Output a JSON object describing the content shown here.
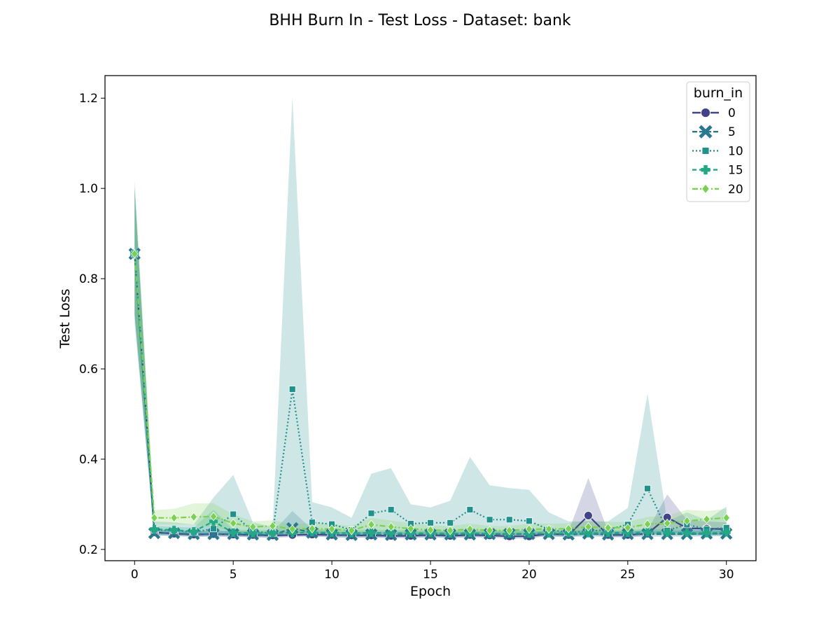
{
  "chart_data": {
    "type": "line",
    "title": "BHH Burn In - Test Loss - Dataset: bank",
    "xlabel": "Epoch",
    "ylabel": "Test Loss",
    "xlim": [
      -1.5,
      31.5
    ],
    "ylim": [
      0.175,
      1.25
    ],
    "x_ticks": [
      0,
      5,
      10,
      15,
      20,
      25,
      30
    ],
    "y_ticks": [
      0.2,
      0.4,
      0.6,
      0.8,
      1.0,
      1.2
    ],
    "x_tick_labels": [
      "0",
      "5",
      "10",
      "15",
      "20",
      "25",
      "30"
    ],
    "y_tick_labels": [
      "0.2",
      "0.4",
      "0.6",
      "0.8",
      "1.0",
      "1.2"
    ],
    "legend": {
      "title": "burn_in",
      "placement": "top-right"
    },
    "grid": false,
    "x": [
      0,
      1,
      2,
      3,
      4,
      5,
      6,
      7,
      8,
      9,
      10,
      11,
      12,
      13,
      14,
      15,
      16,
      17,
      18,
      19,
      20,
      21,
      22,
      23,
      24,
      25,
      26,
      27,
      28,
      29,
      30
    ],
    "series": [
      {
        "name": "0",
        "color": "#414487",
        "dash": "solid",
        "marker": "circle",
        "values": [
          0.855,
          0.238,
          0.235,
          0.233,
          0.234,
          0.233,
          0.232,
          0.231,
          0.232,
          0.233,
          0.232,
          0.231,
          0.231,
          0.23,
          0.23,
          0.232,
          0.23,
          0.232,
          0.231,
          0.229,
          0.229,
          0.235,
          0.232,
          0.275,
          0.232,
          0.232,
          0.235,
          0.271,
          0.247,
          0.246,
          0.245
        ],
        "lower": [
          0.72,
          0.232,
          0.23,
          0.228,
          0.229,
          0.228,
          0.227,
          0.226,
          0.227,
          0.228,
          0.227,
          0.226,
          0.226,
          0.225,
          0.225,
          0.227,
          0.225,
          0.227,
          0.226,
          0.224,
          0.224,
          0.23,
          0.227,
          0.235,
          0.227,
          0.227,
          0.23,
          0.24,
          0.233,
          0.232,
          0.232
        ],
        "upper": [
          1.0,
          0.245,
          0.242,
          0.24,
          0.241,
          0.24,
          0.239,
          0.238,
          0.239,
          0.24,
          0.239,
          0.238,
          0.238,
          0.237,
          0.237,
          0.239,
          0.237,
          0.239,
          0.238,
          0.236,
          0.236,
          0.242,
          0.24,
          0.358,
          0.24,
          0.24,
          0.242,
          0.322,
          0.265,
          0.262,
          0.26
        ]
      },
      {
        "name": "5",
        "color": "#2a788e",
        "dash": "longdash",
        "marker": "x",
        "values": [
          0.855,
          0.236,
          0.236,
          0.234,
          0.234,
          0.234,
          0.233,
          0.232,
          0.247,
          0.237,
          0.233,
          0.232,
          0.233,
          0.232,
          0.233,
          0.233,
          0.233,
          0.233,
          0.234,
          0.234,
          0.234,
          0.234,
          0.233,
          0.235,
          0.233,
          0.234,
          0.234,
          0.234,
          0.234,
          0.235,
          0.235
        ],
        "lower": [
          0.72,
          0.23,
          0.23,
          0.228,
          0.228,
          0.228,
          0.227,
          0.226,
          0.23,
          0.23,
          0.227,
          0.226,
          0.227,
          0.226,
          0.227,
          0.227,
          0.227,
          0.227,
          0.228,
          0.228,
          0.228,
          0.228,
          0.227,
          0.229,
          0.227,
          0.228,
          0.228,
          0.228,
          0.228,
          0.229,
          0.229
        ],
        "upper": [
          1.0,
          0.243,
          0.243,
          0.241,
          0.241,
          0.241,
          0.24,
          0.239,
          0.285,
          0.245,
          0.24,
          0.239,
          0.24,
          0.239,
          0.24,
          0.24,
          0.24,
          0.24,
          0.241,
          0.241,
          0.241,
          0.241,
          0.24,
          0.242,
          0.24,
          0.241,
          0.241,
          0.241,
          0.241,
          0.242,
          0.242
        ]
      },
      {
        "name": "10",
        "color": "#21918c",
        "dash": "dotted",
        "marker": "square",
        "values": [
          0.855,
          0.243,
          0.242,
          0.238,
          0.246,
          0.278,
          0.24,
          0.236,
          0.555,
          0.26,
          0.256,
          0.243,
          0.28,
          0.288,
          0.257,
          0.259,
          0.259,
          0.288,
          0.266,
          0.266,
          0.263,
          0.244,
          0.238,
          0.24,
          0.244,
          0.255,
          0.335,
          0.242,
          0.255,
          0.245,
          0.248
        ],
        "lower": [
          0.7,
          0.232,
          0.232,
          0.228,
          0.232,
          0.232,
          0.23,
          0.228,
          0.24,
          0.235,
          0.236,
          0.232,
          0.235,
          0.235,
          0.232,
          0.232,
          0.232,
          0.235,
          0.232,
          0.232,
          0.232,
          0.232,
          0.23,
          0.23,
          0.232,
          0.232,
          0.235,
          0.232,
          0.232,
          0.232,
          0.232
        ],
        "upper": [
          1.02,
          0.262,
          0.26,
          0.255,
          0.315,
          0.365,
          0.26,
          0.25,
          1.203,
          0.305,
          0.293,
          0.27,
          0.368,
          0.38,
          0.3,
          0.293,
          0.308,
          0.405,
          0.342,
          0.336,
          0.332,
          0.282,
          0.262,
          0.262,
          0.262,
          0.292,
          0.545,
          0.262,
          0.282,
          0.265,
          0.295
        ]
      },
      {
        "name": "15",
        "color": "#22a884",
        "dash": "dashed",
        "marker": "plus",
        "values": [
          0.855,
          0.245,
          0.243,
          0.24,
          0.262,
          0.237,
          0.236,
          0.236,
          0.236,
          0.238,
          0.237,
          0.236,
          0.237,
          0.236,
          0.236,
          0.236,
          0.235,
          0.236,
          0.235,
          0.235,
          0.235,
          0.236,
          0.236,
          0.236,
          0.237,
          0.237,
          0.238,
          0.237,
          0.237,
          0.236,
          0.238
        ],
        "lower": [
          0.72,
          0.238,
          0.236,
          0.234,
          0.236,
          0.231,
          0.23,
          0.23,
          0.23,
          0.232,
          0.231,
          0.23,
          0.231,
          0.23,
          0.23,
          0.23,
          0.229,
          0.23,
          0.229,
          0.229,
          0.229,
          0.23,
          0.23,
          0.23,
          0.231,
          0.231,
          0.232,
          0.231,
          0.231,
          0.23,
          0.232
        ],
        "upper": [
          1.0,
          0.252,
          0.25,
          0.248,
          0.288,
          0.244,
          0.243,
          0.243,
          0.243,
          0.245,
          0.244,
          0.243,
          0.244,
          0.243,
          0.243,
          0.243,
          0.242,
          0.243,
          0.242,
          0.242,
          0.242,
          0.243,
          0.243,
          0.243,
          0.244,
          0.244,
          0.245,
          0.244,
          0.244,
          0.243,
          0.245
        ]
      },
      {
        "name": "20",
        "color": "#7ad151",
        "dash": "dashdot",
        "marker": "diamond",
        "values": [
          0.855,
          0.27,
          0.27,
          0.272,
          0.273,
          0.258,
          0.25,
          0.252,
          0.245,
          0.246,
          0.245,
          0.242,
          0.255,
          0.25,
          0.246,
          0.243,
          0.242,
          0.245,
          0.242,
          0.242,
          0.245,
          0.245,
          0.246,
          0.25,
          0.248,
          0.248,
          0.256,
          0.258,
          0.263,
          0.267,
          0.27
        ],
        "lower": [
          0.72,
          0.255,
          0.255,
          0.255,
          0.248,
          0.242,
          0.238,
          0.238,
          0.235,
          0.236,
          0.235,
          0.234,
          0.24,
          0.238,
          0.236,
          0.235,
          0.234,
          0.235,
          0.234,
          0.234,
          0.235,
          0.235,
          0.236,
          0.238,
          0.237,
          0.237,
          0.242,
          0.243,
          0.245,
          0.248,
          0.25
        ],
        "upper": [
          1.0,
          0.287,
          0.29,
          0.302,
          0.302,
          0.278,
          0.262,
          0.265,
          0.256,
          0.258,
          0.256,
          0.252,
          0.27,
          0.264,
          0.258,
          0.253,
          0.252,
          0.257,
          0.252,
          0.252,
          0.257,
          0.257,
          0.258,
          0.264,
          0.261,
          0.261,
          0.272,
          0.275,
          0.288,
          0.285,
          0.29
        ]
      }
    ]
  }
}
